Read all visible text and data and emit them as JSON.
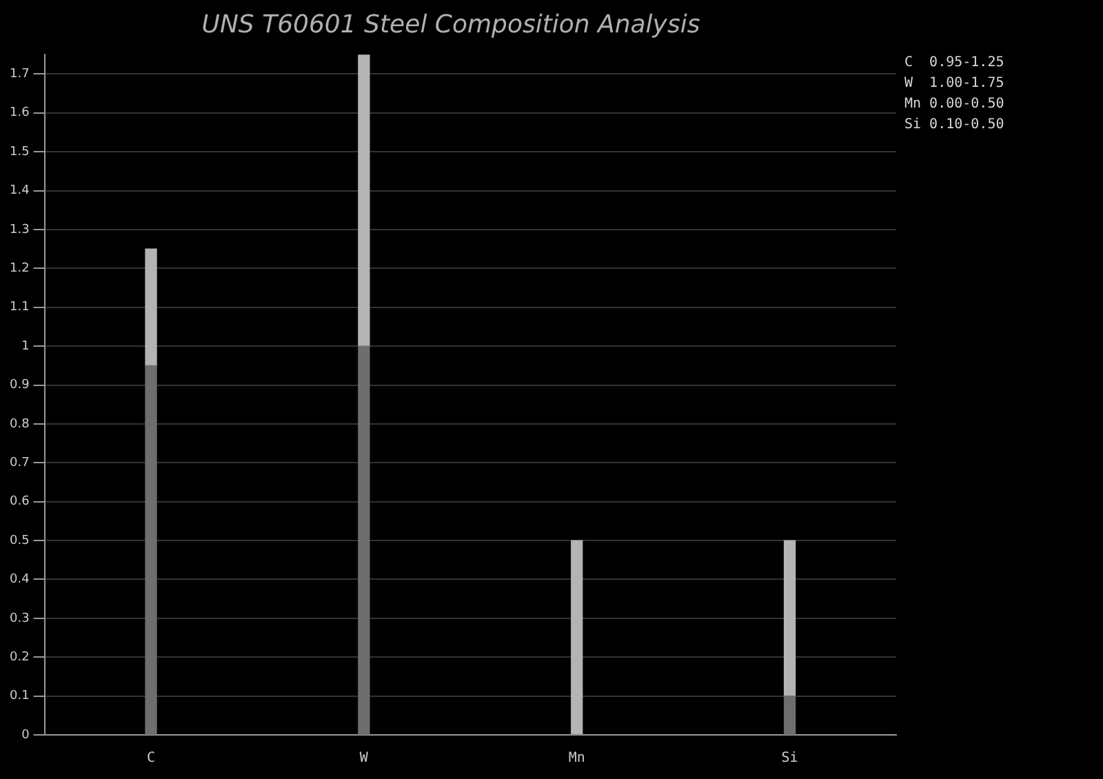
{
  "chart_data": {
    "type": "bar",
    "title": "UNS T60601 Steel Composition Analysis",
    "categories": [
      "C",
      "W",
      "Mn",
      "Si"
    ],
    "series": [
      {
        "color": "#6e6e6e",
        "values": [
          0.95,
          1.0,
          0,
          0.1
        ]
      },
      {
        "color": "#b4b4b4",
        "values": [
          0.3,
          0.75,
          0.5,
          0.4
        ]
      }
    ],
    "stacked": true,
    "ylim": [
      0,
      1.75
    ],
    "yticks": [
      0,
      0.1,
      0.2,
      0.3,
      0.4,
      0.5,
      0.6,
      0.7,
      0.8,
      0.9,
      1,
      1.1,
      1.2,
      1.3,
      1.4,
      1.5,
      1.6,
      1.7
    ],
    "grid": "y",
    "legend": false,
    "annotations": [
      "C  0.95-1.25",
      "W  1.00-1.75",
      "Mn 0.00-0.50",
      "Si 0.10-0.50"
    ]
  }
}
